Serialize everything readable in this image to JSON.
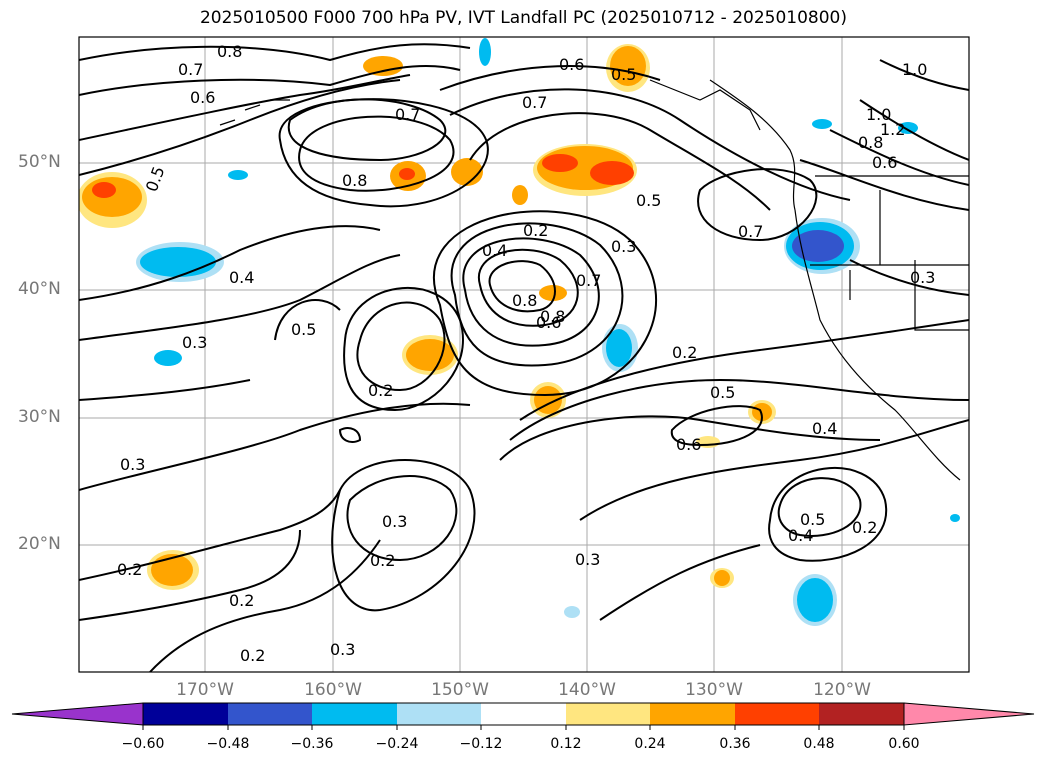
{
  "title": "2025010500 F000 700 hPa PV, IVT Landfall PC (2025010712 - 2025010800)",
  "lat_labels": [
    "50°N",
    "40°N",
    "30°N",
    "20°N"
  ],
  "lon_labels": [
    "170°W",
    "160°W",
    "150°W",
    "140°W",
    "130°W",
    "120°W"
  ],
  "colorbar": {
    "ticks": [
      "−0.60",
      "−0.48",
      "−0.36",
      "−0.24",
      "−0.12",
      "0.12",
      "0.24",
      "0.36",
      "0.48",
      "0.60"
    ],
    "colors": [
      "#9933cc",
      "#000099",
      "#3355cc",
      "#00bbf0",
      "#aee0f5",
      "#ffffff",
      "#ffe680",
      "#ffa500",
      "#ff4000",
      "#b22222",
      "#ff88aa"
    ]
  },
  "contour_labels": [
    "0.8",
    "0.7",
    "0.6",
    "0.5",
    "0.8",
    "0.7",
    "0.6",
    "0.5",
    "1.0",
    "1.0",
    "1.2",
    "0.8",
    "0.6",
    "0.7",
    "0.5",
    "0.8",
    "0.4",
    "0.2",
    "0.3",
    "0.7",
    "0.4",
    "0.5",
    "0.3",
    "0.8",
    "0.6",
    "0.7",
    "0.3",
    "0.2",
    "0.2",
    "0.5",
    "0.6",
    "0.4",
    "0.3",
    "0.3",
    "0.2",
    "0.2",
    "0.3",
    "0.5",
    "0.4",
    "0.2",
    "0.2",
    "0.2",
    "0.3"
  ]
}
